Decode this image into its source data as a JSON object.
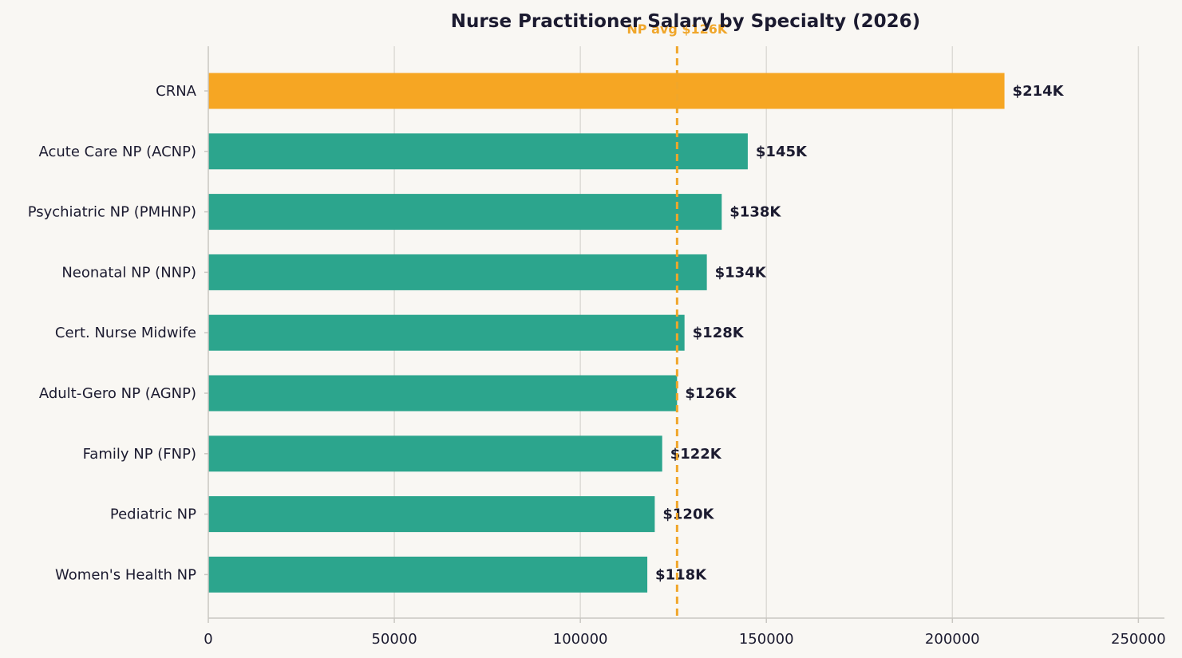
{
  "chart_data": {
    "type": "bar",
    "orientation": "horizontal",
    "title": "Nurse Practitioner Salary by Specialty (2026)",
    "xlabel": "",
    "ylabel": "",
    "xlim": [
      0,
      257000
    ],
    "x_ticks": [
      0,
      50000,
      100000,
      150000,
      200000,
      250000
    ],
    "x_tick_labels": [
      "0",
      "50000",
      "100000",
      "150000",
      "200000",
      "250000"
    ],
    "grid": "vertical",
    "categories": [
      "CRNA",
      "Acute Care NP (ACNP)",
      "Psychiatric NP (PMHNP)",
      "Neonatal NP (NNP)",
      "Cert. Nurse Midwife",
      "Adult-Gero NP (AGNP)",
      "Family NP (FNP)",
      "Pediatric NP",
      "Women's Health NP"
    ],
    "values": [
      214000,
      145000,
      138000,
      134000,
      128000,
      126000,
      122000,
      120000,
      118000
    ],
    "value_labels": [
      "$214K",
      "$145K",
      "$138K",
      "$134K",
      "$128K",
      "$126K",
      "$122K",
      "$120K",
      "$118K"
    ],
    "highlight_category": "CRNA",
    "reference_line": {
      "value": 126000,
      "label": "NP avg $126K"
    }
  },
  "colors": {
    "background": "#f9f7f3",
    "bar": "#2ca58d",
    "highlight_bar": "#f6a623",
    "reference_line": "#f0a62a",
    "text": "#1c1b30",
    "grid": "#dddbd6",
    "axis": "#c9c7c2"
  }
}
